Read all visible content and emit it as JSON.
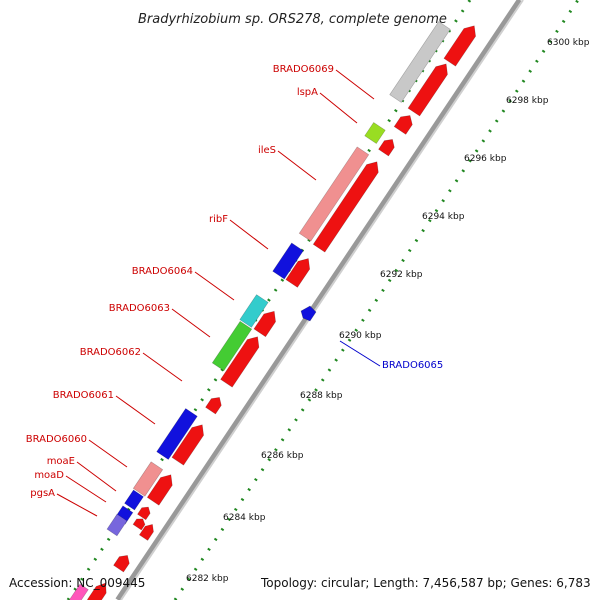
{
  "title": "Bradyrhizobium sp. ORS278, complete genome",
  "footer": {
    "accession": "Accession: NC_009445",
    "summary": "Topology: circular; Length: 7,456,587 bp; Genes: 6,783"
  },
  "ticks": [
    {
      "label": "6300 kbp",
      "kbp": 6300
    },
    {
      "label": "6298 kbp",
      "kbp": 6298
    },
    {
      "label": "6296 kbp",
      "kbp": 6296
    },
    {
      "label": "6294 kbp",
      "kbp": 6294
    },
    {
      "label": "6292 kbp",
      "kbp": 6292
    },
    {
      "label": "6290 kbp",
      "kbp": 6290
    },
    {
      "label": "6288 kbp",
      "kbp": 6288
    },
    {
      "label": "6286 kbp",
      "kbp": 6286
    },
    {
      "label": "6284 kbp",
      "kbp": 6284
    },
    {
      "label": "6282 kbp",
      "kbp": 6282
    }
  ],
  "gene_labels": [
    {
      "name": "BRADO6069",
      "color": "#cc0000"
    },
    {
      "name": "lspA",
      "color": "#cc0000"
    },
    {
      "name": "ileS",
      "color": "#cc0000"
    },
    {
      "name": "ribF",
      "color": "#cc0000"
    },
    {
      "name": "BRADO6064",
      "color": "#cc0000"
    },
    {
      "name": "BRADO6063",
      "color": "#cc0000"
    },
    {
      "name": "BRADO6062",
      "color": "#cc0000"
    },
    {
      "name": "BRADO6061",
      "color": "#cc0000"
    },
    {
      "name": "BRADO6060",
      "color": "#cc0000"
    },
    {
      "name": "moaE",
      "color": "#cc0000"
    },
    {
      "name": "moaD",
      "color": "#cc0000"
    },
    {
      "name": "pgsA",
      "color": "#cc0000"
    },
    {
      "name": "BRADO6065",
      "color": "#0000cc"
    }
  ],
  "colors": {
    "backbone": "#888888",
    "cds": "#ee1111",
    "gene_blue": "#1111dd",
    "gene_green": "#44cc33",
    "gene_lime": "#99dd22",
    "gene_cyan": "#33cccc",
    "gene_pink": "#f09090",
    "gene_gray": "#c8c8c8",
    "gene_violet": "#7766dd",
    "gene_magenta": "#ff55bb",
    "tick_green": "#228822"
  }
}
